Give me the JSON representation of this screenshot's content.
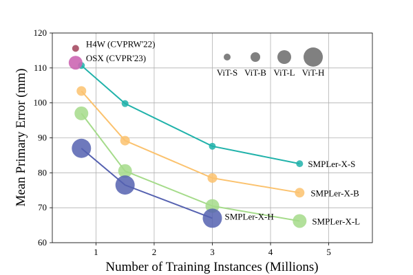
{
  "chart_data": {
    "type": "scatter",
    "xlabel": "Number of Training Instances (Millions)",
    "ylabel": "Mean Primary Error (mm)",
    "xlim": [
      0.25,
      5.75
    ],
    "ylim": [
      60,
      120
    ],
    "xticks": [
      1,
      2,
      3,
      4,
      5
    ],
    "yticks": [
      60,
      70,
      80,
      90,
      100,
      110,
      120
    ],
    "grid": true,
    "series": [
      {
        "name": "SMPLer-X-S",
        "color": "#20b2aa",
        "size": "ViT-S",
        "points": [
          {
            "x": 0.75,
            "y": 110.7
          },
          {
            "x": 1.5,
            "y": 99.8
          },
          {
            "x": 3.0,
            "y": 87.6
          },
          {
            "x": 4.5,
            "y": 82.6
          }
        ]
      },
      {
        "name": "SMPLer-X-B",
        "color": "#fbc26e",
        "size": "ViT-B",
        "points": [
          {
            "x": 0.75,
            "y": 103.4
          },
          {
            "x": 1.5,
            "y": 89.2
          },
          {
            "x": 3.0,
            "y": 78.5
          },
          {
            "x": 4.5,
            "y": 74.3
          }
        ]
      },
      {
        "name": "SMPLer-X-L",
        "color": "#a5db8a",
        "size": "ViT-L",
        "points": [
          {
            "x": 0.75,
            "y": 97.0
          },
          {
            "x": 1.5,
            "y": 80.5
          },
          {
            "x": 3.0,
            "y": 70.5
          },
          {
            "x": 4.5,
            "y": 66.2
          }
        ]
      },
      {
        "name": "SMPLer-X-H",
        "color": "#5561b0",
        "size": "ViT-H",
        "points": [
          {
            "x": 0.75,
            "y": 87.0
          },
          {
            "x": 1.5,
            "y": 76.5
          },
          {
            "x": 3.0,
            "y": 67.0
          }
        ]
      }
    ],
    "baselines": [
      {
        "name": "H4W (CVPRW'22)",
        "x": 0.65,
        "y": 115.6,
        "color": "#a64d63",
        "size": "ViT-S"
      },
      {
        "name": "OSX (CVPR'23)",
        "x": 0.65,
        "y": 111.5,
        "color": "#cc66b3",
        "size": "ViT-L"
      }
    ],
    "size_legend": {
      "placement": "top-right",
      "color": "#808080",
      "entries": [
        "ViT-S",
        "ViT-B",
        "ViT-L",
        "ViT-H"
      ]
    }
  }
}
